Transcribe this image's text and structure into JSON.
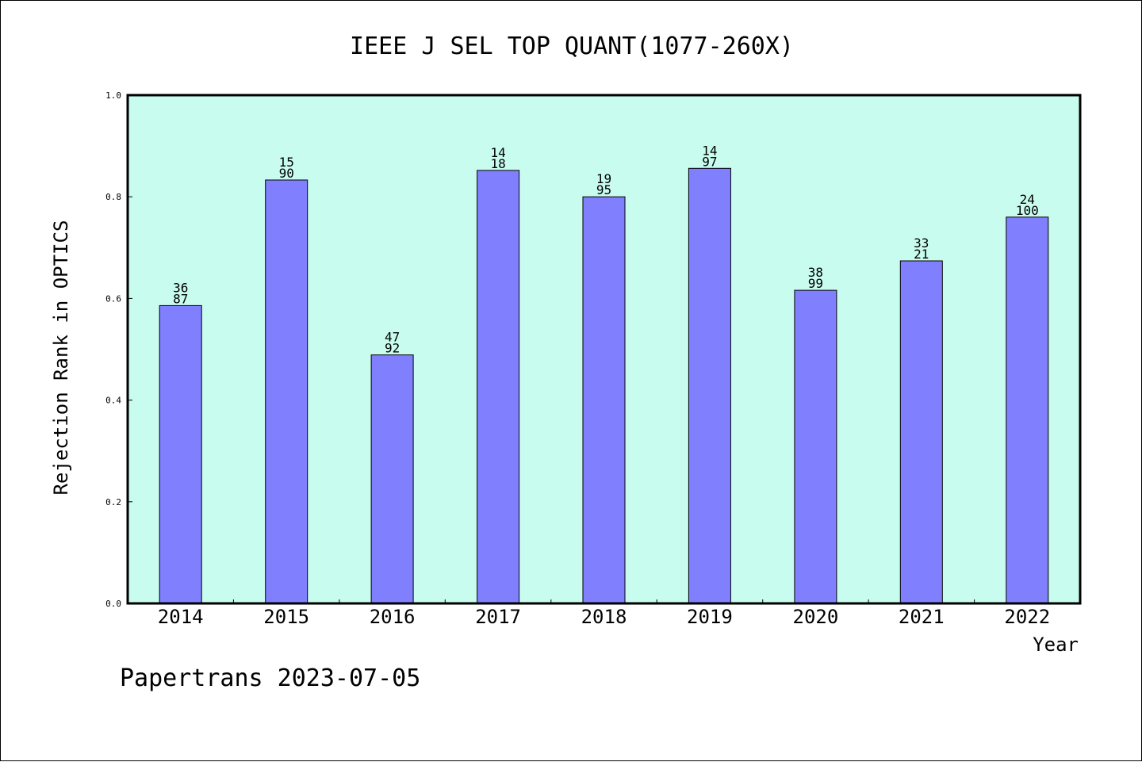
{
  "chart_data": {
    "type": "bar",
    "title": "IEEE J SEL TOP QUANT(1077-260X)",
    "xlabel": "Year",
    "ylabel": "Rejection Rank in OPTICS",
    "ylim": [
      0.0,
      1.0
    ],
    "yticks": [
      "0.0",
      "0.2",
      "0.4",
      "0.6",
      "0.8",
      "1.0"
    ],
    "grid": false,
    "categories": [
      "2014",
      "2015",
      "2016",
      "2017",
      "2018",
      "2019",
      "2020",
      "2021",
      "2022"
    ],
    "values": [
      0.586,
      0.833,
      0.489,
      0.852,
      0.8,
      0.856,
      0.616,
      0.674,
      0.76
    ],
    "labels_top": [
      "36",
      "15",
      "47",
      "14",
      "19",
      "14",
      "38",
      "33",
      "24"
    ],
    "labels_bottom": [
      "87",
      "90",
      "92",
      "18",
      "95",
      "97",
      "99",
      "21",
      "100"
    ],
    "colors": {
      "plot_background": "#c8fcee",
      "bar_fill": "#8080ff",
      "bar_stroke": "#000000"
    }
  },
  "footer": {
    "text": "Papertrans 2023-07-05"
  }
}
